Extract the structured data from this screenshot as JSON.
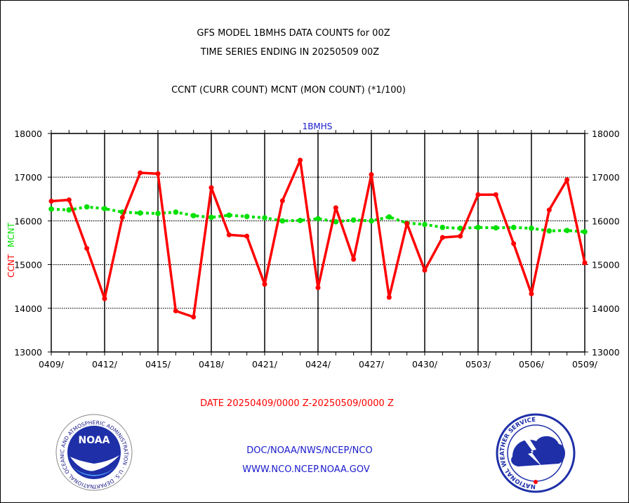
{
  "header": {
    "line1": "GFS MODEL 1BMHS DATA COUNTS for 00Z",
    "line2": "TIME SERIES ENDING IN 20250509 00Z",
    "line3": "CCNT (CURR COUNT) MCNT (MON COUNT) (*1/100)"
  },
  "footer": {
    "date_range": "DATE 20250409/0000 Z-20250509/0000 Z",
    "org": "DOC/NOAA/NWS/NCEP/NCO",
    "url": "WWW.NCO.NCEP.NOAA.GOV"
  },
  "logos": {
    "noaa_text": "NOAA",
    "noaa_ring": "NATIONAL OCEANIC AND ATMOSPHERIC ADMINISTRATION · U.S. DEPARTMENT OF COMMERCE",
    "nws_ring": "NATIONAL WEATHER SERVICE"
  },
  "colors": {
    "ccnt": "#ff0000",
    "mcnt": "#00e000",
    "grid": "#000000",
    "text_blue": "#1a1acc"
  },
  "chart_data": {
    "type": "line",
    "title": "1BMHS",
    "ylabel_ccnt": "CCNT",
    "ylabel_mcnt": "MCNT",
    "ylim": [
      13000,
      18000
    ],
    "yticks": [
      13000,
      14000,
      15000,
      16000,
      17000,
      18000
    ],
    "x_tick_labels": [
      "0409/",
      "0412/",
      "0415/",
      "0418/",
      "0421/",
      "0424/",
      "0427/",
      "0430/",
      "0503/",
      "0506/",
      "0509/"
    ],
    "x": [
      "0409",
      "0410",
      "0411",
      "0412",
      "0413",
      "0414",
      "0415",
      "0416",
      "0417",
      "0418",
      "0419",
      "0420",
      "0421",
      "0422",
      "0423",
      "0424",
      "0425",
      "0426",
      "0427",
      "0428",
      "0429",
      "0430",
      "0501",
      "0502",
      "0503",
      "0504",
      "0505",
      "0506",
      "0507",
      "0508",
      "0509"
    ],
    "series": [
      {
        "name": "CCNT",
        "color": "#ff0000",
        "style": "solid",
        "values": [
          16450,
          16480,
          15370,
          14220,
          16080,
          17100,
          17080,
          13940,
          13800,
          16760,
          15680,
          15650,
          14550,
          16460,
          17390,
          14470,
          16300,
          15120,
          17060,
          14250,
          15940,
          14870,
          15620,
          15650,
          16600,
          16600,
          15480,
          14330,
          16250,
          16940,
          15040
        ]
      },
      {
        "name": "MCNT",
        "color": "#00e000",
        "style": "dotted",
        "values": [
          16270,
          16250,
          16320,
          16280,
          16200,
          16180,
          16170,
          16200,
          16120,
          16080,
          16130,
          16100,
          16070,
          16000,
          16010,
          16050,
          15980,
          16020,
          16000,
          16090,
          15950,
          15920,
          15850,
          15830,
          15850,
          15840,
          15850,
          15830,
          15770,
          15780,
          15750
        ]
      }
    ]
  }
}
